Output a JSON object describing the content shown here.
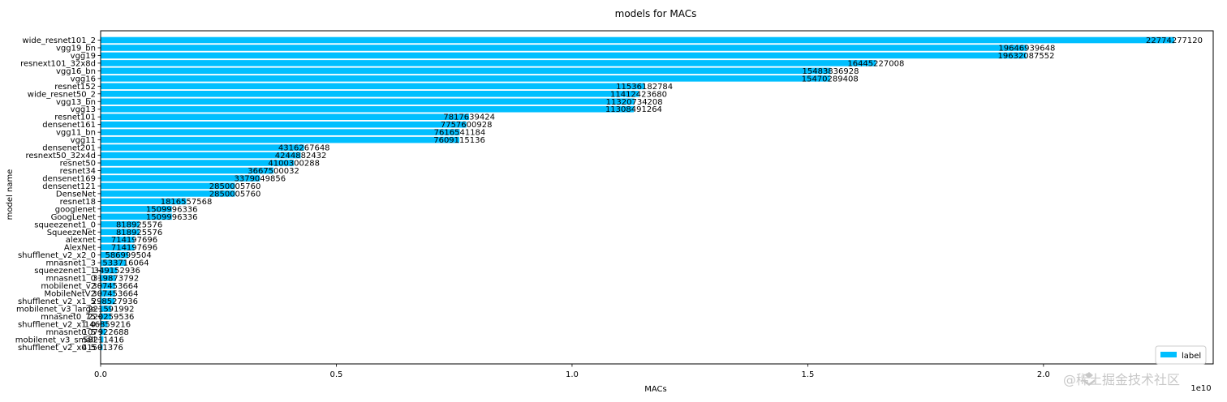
{
  "colors": {
    "bar": "#00bfff",
    "axis": "#000000",
    "watermark": "#c8c8c8"
  },
  "watermark": {
    "icon": "gold-nugget-logo-icon",
    "text": "@稀土掘金技术社区"
  },
  "chart_data": {
    "type": "bar",
    "orientation": "horizontal",
    "title": "models for MACs",
    "xlabel": "MACs",
    "ylabel": "model name",
    "x_offset_text": "1e10",
    "xlim": [
      0,
      23600000000
    ],
    "xticks": [
      0,
      5000000000,
      10000000000,
      15000000000,
      20000000000
    ],
    "xtick_labels": [
      "0.0",
      "0.5",
      "1.0",
      "1.5",
      "2.0"
    ],
    "grid": false,
    "legend": {
      "entries": [
        "label"
      ],
      "position": "lower-right"
    },
    "categories": [
      "wide_resnet101_2",
      "vgg19_bn",
      "vgg19",
      "resnext101_32x8d",
      "vgg16_bn",
      "vgg16",
      "resnet152",
      "wide_resnet50_2",
      "vgg13_bn",
      "vgg13",
      "resnet101",
      "densenet161",
      "vgg11_bn",
      "vgg11",
      "densenet201",
      "resnext50_32x4d",
      "resnet50",
      "resnet34",
      "densenet169",
      "densenet121",
      "DenseNet",
      "resnet18",
      "googlenet",
      "GoogLeNet",
      "squeezenet1_0",
      "SqueezeNet",
      "alexnet",
      "AlexNet",
      "shufflenet_v2_x2_0",
      "mnasnet1_3",
      "squeezenet1_1",
      "mnasnet1_0",
      "mobilenet_v2",
      "MobileNetV2",
      "shufflenet_v2_x1_5",
      "mobilenet_v3_large",
      "mnasnet0_75",
      "shufflenet_v2_x1_0",
      "mnasnet0_5",
      "mobilenet_v3_small",
      "shufflenet_v2_x0_5"
    ],
    "values": [
      22774277120,
      19646939648,
      19632087552,
      16445227008,
      15483836928,
      15470289408,
      11536182784,
      11412423680,
      11320734208,
      11308491264,
      7817639424,
      7757600928,
      7616541184,
      7609115136,
      4316267648,
      4244882432,
      4100300288,
      3667500032,
      3379049856,
      2850005760,
      2850005760,
      1816557568,
      1509996336,
      1509996336,
      818925576,
      818925576,
      714197696,
      714197696,
      586999504,
      533716064,
      349152936,
      319873792,
      307453664,
      307453664,
      298527936,
      221591992,
      220259536,
      146859216,
      107922688,
      58211416,
      41501376
    ],
    "value_labels": [
      "22774277120",
      "19646939648",
      "19632087552",
      "16445227008",
      "15483836928",
      "15470289408",
      "11536182784",
      "11412423680",
      "11320734208",
      "11308491264",
      "7817639424",
      "7757600928",
      "7616541184",
      "7609115136",
      "4316267648",
      "4244882432",
      "4100300288",
      "3667500032",
      "3379049856",
      "2850005760",
      "2850005760",
      "1816557568",
      "1509996336",
      "1509996336",
      "818925576",
      "818925576",
      "714197696",
      "714197696",
      "586999504",
      "533716064",
      "349152936",
      "319873792",
      "307453664",
      "307453664",
      "298527936",
      "221591992",
      "220259536",
      "146859216",
      "107922688",
      "58211416",
      "41501376"
    ]
  }
}
